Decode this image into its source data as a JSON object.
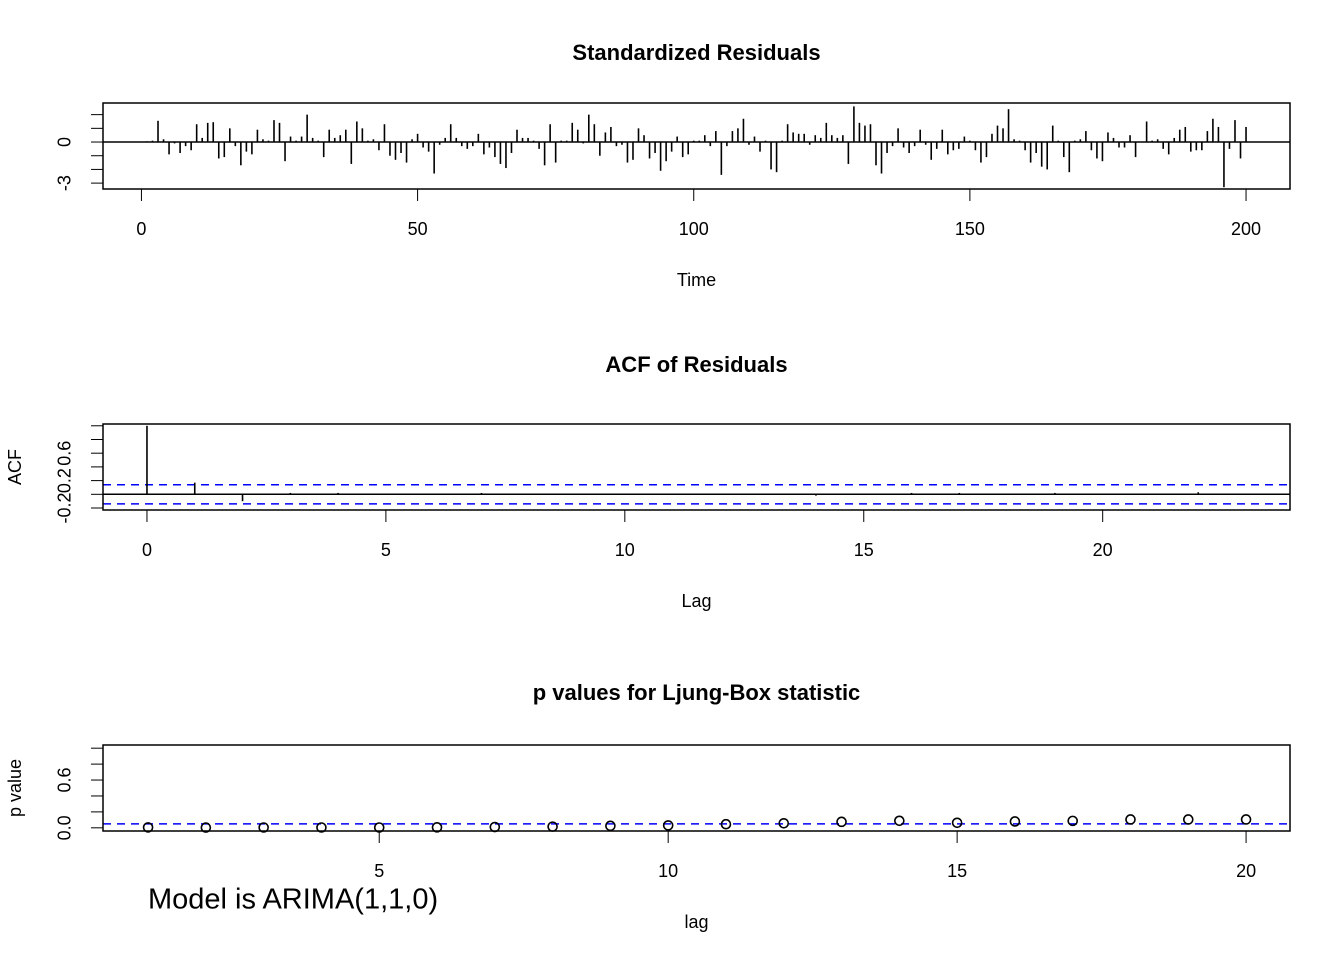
{
  "chart_data": [
    {
      "type": "spike",
      "title": "Standardized Residuals",
      "x_label": "Time",
      "x": [
        1,
        2,
        3,
        4,
        5,
        6,
        7,
        8,
        9,
        10,
        11,
        12,
        13,
        14,
        15,
        16,
        17,
        18,
        19,
        20,
        21,
        22,
        23,
        24,
        25,
        26,
        27,
        28,
        29,
        30,
        31,
        32,
        33,
        34,
        35,
        36,
        37,
        38,
        39,
        40,
        41,
        42,
        43,
        44,
        45,
        46,
        47,
        48,
        49,
        50,
        51,
        52,
        53,
        54,
        55,
        56,
        57,
        58,
        59,
        60,
        61,
        62,
        63,
        64,
        65,
        66,
        67,
        68,
        69,
        70,
        71,
        72,
        73,
        74,
        75,
        76,
        77,
        78,
        79,
        80,
        81,
        82,
        83,
        84,
        85,
        86,
        87,
        88,
        89,
        90,
        91,
        92,
        93,
        94,
        95,
        96,
        97,
        98,
        99,
        100,
        101,
        102,
        103,
        104,
        105,
        106,
        107,
        108,
        109,
        110,
        111,
        112,
        113,
        114,
        115,
        116,
        117,
        118,
        119,
        120,
        121,
        122,
        123,
        124,
        125,
        126,
        127,
        128,
        129,
        130,
        131,
        132,
        133,
        134,
        135,
        136,
        137,
        138,
        139,
        140,
        141,
        142,
        143,
        144,
        145,
        146,
        147,
        148,
        149,
        150,
        151,
        152,
        153,
        154,
        155,
        156,
        157,
        158,
        159,
        160,
        161,
        162,
        163,
        164,
        165,
        166,
        167,
        168,
        169,
        170,
        171,
        172,
        173,
        174,
        175,
        176,
        177,
        178,
        179,
        180,
        181,
        182,
        183,
        184,
        185,
        186,
        187,
        188,
        189,
        190,
        191,
        192,
        193,
        194,
        195,
        196,
        197,
        198,
        199,
        200
      ],
      "values": [
        0.05,
        0.1,
        1.55,
        0.2,
        -0.9,
        -0.1,
        -0.8,
        -0.3,
        -0.6,
        1.3,
        0.3,
        1.4,
        1.45,
        -1.2,
        -1.1,
        1.0,
        -0.3,
        -1.7,
        -0.7,
        -0.9,
        0.9,
        0.2,
        0.1,
        1.6,
        1.4,
        -1.4,
        0.4,
        0.1,
        0.4,
        2.0,
        0.3,
        0.1,
        -1.1,
        0.9,
        0.3,
        0.5,
        0.9,
        -1.6,
        1.5,
        1.0,
        0.1,
        0.2,
        -0.6,
        1.3,
        -1.0,
        -1.3,
        -0.8,
        -1.5,
        0.2,
        0.6,
        -0.4,
        -0.7,
        -2.3,
        -0.2,
        0.3,
        1.3,
        0.3,
        -0.3,
        -0.5,
        -0.3,
        0.6,
        -0.9,
        -0.4,
        -1.1,
        -1.6,
        -1.9,
        -0.8,
        0.9,
        0.3,
        0.3,
        0.1,
        -0.5,
        -1.7,
        1.3,
        -1.5,
        0.1,
        0.1,
        1.4,
        0.9,
        -0.1,
        2.0,
        1.3,
        -1.0,
        0.7,
        1.1,
        -0.3,
        -0.2,
        -1.5,
        -1.3,
        1.0,
        0.5,
        -1.2,
        -0.8,
        -2.1,
        -1.4,
        -0.7,
        0.4,
        -1.1,
        -0.9,
        0.1,
        0.1,
        0.5,
        -0.3,
        0.8,
        -2.4,
        -0.3,
        0.8,
        1.0,
        1.7,
        -0.2,
        0.4,
        -0.7,
        0.1,
        -2.0,
        -2.2,
        0.1,
        1.3,
        0.7,
        0.6,
        0.6,
        -0.2,
        0.5,
        0.3,
        1.4,
        0.5,
        0.3,
        0.5,
        -1.6,
        2.6,
        1.4,
        1.2,
        1.3,
        -1.7,
        -2.3,
        -0.8,
        -0.3,
        1.0,
        -0.4,
        -0.8,
        -0.3,
        0.9,
        -0.2,
        -1.3,
        -0.5,
        0.9,
        -0.9,
        -0.6,
        -0.5,
        0.4,
        0.1,
        -0.6,
        -1.5,
        -1.1,
        0.6,
        1.2,
        1.0,
        2.4,
        0.2,
        0.1,
        -0.6,
        -1.5,
        -0.8,
        -1.8,
        -2.0,
        1.2,
        0.1,
        -1.1,
        -2.2,
        0.1,
        0.2,
        0.8,
        -0.6,
        -1.2,
        -1.4,
        0.7,
        0.3,
        -0.4,
        -0.4,
        0.5,
        -1.1,
        0.0,
        1.5,
        0.1,
        0.2,
        -0.5,
        -0.9,
        0.3,
        0.9,
        1.1,
        -0.7,
        -0.6,
        -0.6,
        0.8,
        1.7,
        1.1,
        -3.3,
        -0.5,
        1.6,
        -1.2,
        1.1
      ],
      "color": "#000000",
      "zero_line": true,
      "xlim": [
        -6.96,
        207.96
      ],
      "xticks": [
        0,
        50,
        100,
        150,
        200
      ],
      "ylim": [
        -3.43,
        2.85
      ],
      "yticks": [
        -3,
        {
          "value": -2,
          "label": null
        },
        {
          "value": -1,
          "label": null
        },
        0,
        {
          "value": 1,
          "label": null
        },
        {
          "value": 2,
          "label": null
        }
      ]
    },
    {
      "type": "spike",
      "title": "ACF of Residuals",
      "x_label": "Lag",
      "y_label": "ACF",
      "x": [
        0,
        1,
        2,
        3,
        4,
        5,
        6,
        7,
        8,
        9,
        10,
        11,
        12,
        13,
        14,
        15,
        16,
        17,
        18,
        19,
        20,
        21,
        22,
        23
      ],
      "values": [
        1,
        0.17,
        -0.1,
        0.02,
        0.02,
        0.01,
        -0.01,
        0.02,
        0.01,
        0.01,
        0.01,
        -0.01,
        -0.01,
        0.01,
        -0.02,
        0.01,
        0.02,
        0.02,
        -0.01,
        0.02,
        -0.01,
        0.01,
        0.03,
        0.01
      ],
      "color": "#000000",
      "zero_line": true,
      "hlines": [
        0.139,
        -0.139
      ],
      "hline_color": "#0000ff",
      "xlim": [
        -0.92,
        23.92
      ],
      "xticks": [
        0,
        5,
        10,
        15,
        20
      ],
      "ylim": [
        -0.229,
        1.026
      ],
      "yticks": [
        -0.2,
        {
          "value": 0,
          "label": null
        },
        0.2,
        {
          "value": 0.4,
          "label": null
        },
        0.6,
        {
          "value": 0.8,
          "label": null
        },
        {
          "value": 1,
          "label": null
        }
      ]
    },
    {
      "type": "scatter",
      "title": "p values for Ljung-Box statistic",
      "x_label": "lag",
      "y_label": "p value",
      "x": [
        1,
        2,
        3,
        4,
        5,
        6,
        7,
        8,
        9,
        10,
        11,
        12,
        13,
        14,
        15,
        16,
        17,
        18,
        19,
        20
      ],
      "values": [
        0.005,
        0.003,
        0.004,
        0.004,
        0.004,
        0.006,
        0.01,
        0.015,
        0.025,
        0.03,
        0.045,
        0.057,
        0.075,
        0.088,
        0.063,
        0.08,
        0.087,
        0.105,
        0.105,
        0.105
      ],
      "color": "#000000",
      "hlines": [
        0.05
      ],
      "hline_color": "#0000ff",
      "xlim": [
        0.22,
        20.76
      ],
      "xticks": [
        5,
        10,
        15,
        20
      ],
      "ylim": [
        -0.04,
        1.04
      ],
      "yticks": [
        {
          "value": 0,
          "label": "0.0"
        },
        {
          "value": 0.2,
          "label": null
        },
        {
          "value": 0.4,
          "label": null
        },
        {
          "value": 0.6,
          "label": "0.6"
        },
        {
          "value": 0.8,
          "label": null
        },
        {
          "value": 1,
          "label": null
        }
      ],
      "annotation": "Model is ARIMA(1,1,0)",
      "annotation_color": "#ff0000"
    }
  ]
}
